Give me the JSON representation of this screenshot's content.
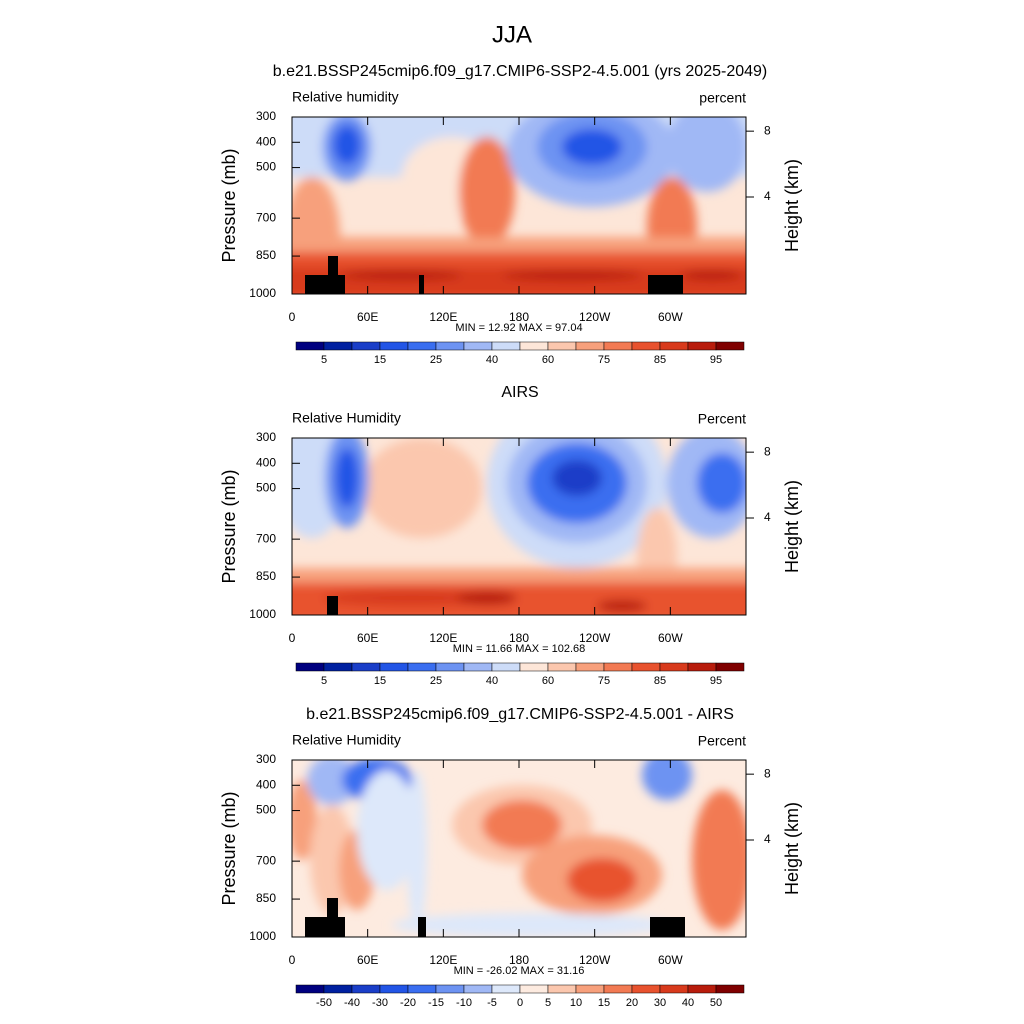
{
  "title": "JJA",
  "chart_data": [
    {
      "type": "contour",
      "title": "b.e21.BSSP245cmip6.f09_g17.CMIP6-SSP2-4.5.001 (yrs 2025-2049)",
      "left_label": "Relative humidity",
      "right_label": "percent",
      "ylabel": "Pressure (mb)",
      "y2label": "Height (km)",
      "stats": "MIN =  12.92  MAX =  97.04",
      "xlim": [
        0,
        360
      ],
      "xticks": [
        0,
        {
          "value": 60,
          "label": "60E"
        },
        {
          "value": 120,
          "label": "120E"
        },
        180,
        {
          "value": 240,
          "label": "120W"
        },
        {
          "value": 300,
          "label": "60W"
        }
      ],
      "ylim": [
        1000,
        300
      ],
      "yticks": [
        300,
        400,
        500,
        700,
        850,
        1000
      ],
      "y2ticks": [
        4,
        8
      ],
      "colorbar": {
        "labels": [
          5,
          15,
          25,
          40,
          60,
          75,
          85,
          95
        ],
        "label_every": 2,
        "colors": [
          "#00007f",
          "#0020a0",
          "#1a3ec8",
          "#2255e6",
          "#3a6ef0",
          "#6d93f2",
          "#a0b8f5",
          "#cddcf8",
          "#fde6d8",
          "#fbc7ae",
          "#f7a07c",
          "#f27a53",
          "#e8522e",
          "#d83a1c",
          "#b81c0c",
          "#7f0000"
        ]
      }
    },
    {
      "type": "contour",
      "title": "AIRS",
      "left_label": "Relative Humidity",
      "right_label": "Percent",
      "ylabel": "Pressure (mb)",
      "y2label": "Height (km)",
      "stats": "MIN =  11.66  MAX = 102.68",
      "xlim": [
        0,
        360
      ],
      "xticks": [
        0,
        {
          "value": 60,
          "label": "60E"
        },
        {
          "value": 120,
          "label": "120E"
        },
        180,
        {
          "value": 240,
          "label": "120W"
        },
        {
          "value": 300,
          "label": "60W"
        }
      ],
      "ylim": [
        1000,
        300
      ],
      "yticks": [
        300,
        400,
        500,
        700,
        850,
        1000
      ],
      "y2ticks": [
        4,
        8
      ],
      "colorbar": {
        "labels": [
          5,
          15,
          25,
          40,
          60,
          75,
          85,
          95
        ],
        "label_every": 2,
        "colors": [
          "#00007f",
          "#0020a0",
          "#1a3ec8",
          "#2255e6",
          "#3a6ef0",
          "#6d93f2",
          "#a0b8f5",
          "#cddcf8",
          "#fde6d8",
          "#fbc7ae",
          "#f7a07c",
          "#f27a53",
          "#e8522e",
          "#d83a1c",
          "#b81c0c",
          "#7f0000"
        ]
      }
    },
    {
      "type": "contour",
      "title": "b.e21.BSSP245cmip6.f09_g17.CMIP6-SSP2-4.5.001 - AIRS",
      "left_label": "Relative Humidity",
      "right_label": "Percent",
      "ylabel": "Pressure (mb)",
      "y2label": "Height (km)",
      "stats": "MIN = -26.02  MAX =  31.16",
      "xlim": [
        0,
        360
      ],
      "xticks": [
        0,
        {
          "value": 60,
          "label": "60E"
        },
        {
          "value": 120,
          "label": "120E"
        },
        180,
        {
          "value": 240,
          "label": "120W"
        },
        {
          "value": 300,
          "label": "60W"
        }
      ],
      "ylim": [
        1000,
        300
      ],
      "yticks": [
        300,
        400,
        500,
        700,
        850,
        1000
      ],
      "y2ticks": [
        4,
        8
      ],
      "colorbar": {
        "labels": [
          -50,
          -40,
          -30,
          -20,
          -15,
          -10,
          -5,
          0,
          5,
          10,
          15,
          20,
          30,
          40,
          50
        ],
        "label_every": 1,
        "colors": [
          "#00007f",
          "#0020a0",
          "#1a3ec8",
          "#2255e6",
          "#3a6ef0",
          "#6d93f2",
          "#a0b8f5",
          "#dde8fa",
          "#fdebe0",
          "#fbc7ae",
          "#f7a07c",
          "#f27a53",
          "#e8522e",
          "#d83a1c",
          "#b81c0c",
          "#7f0000"
        ]
      }
    }
  ]
}
